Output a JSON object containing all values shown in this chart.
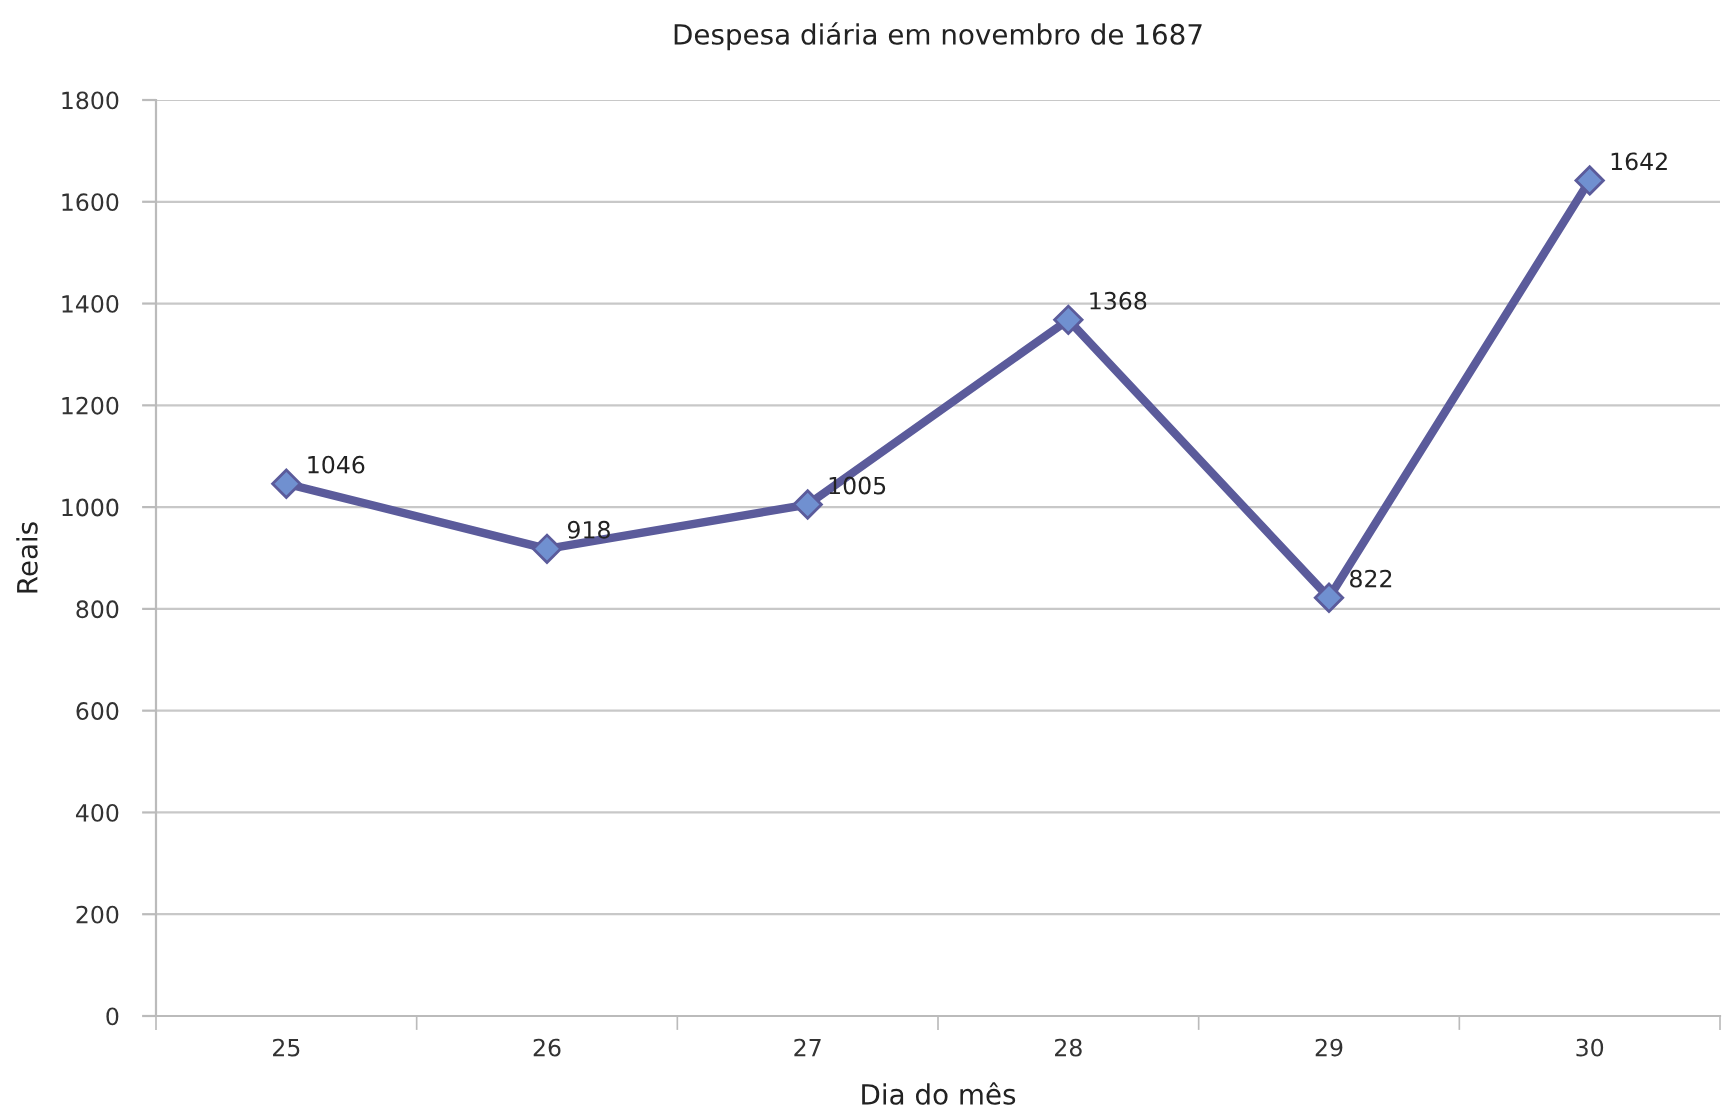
{
  "chart_data": {
    "type": "line",
    "title": "Despesa diária em novembro de 1687",
    "xlabel": "Dia do mês",
    "ylabel": "Reais",
    "categories": [
      "25",
      "26",
      "27",
      "28",
      "29",
      "30"
    ],
    "series": [
      {
        "color": "#5b5b9b",
        "values": [
          1046,
          918,
          1005,
          1368,
          822,
          1642
        ]
      }
    ],
    "ylim": [
      0,
      1800
    ],
    "yticks": [
      0,
      200,
      400,
      600,
      800,
      1000,
      1200,
      1400,
      1600,
      1800
    ],
    "grid": "y",
    "marker": "diamond",
    "line_style": "solid",
    "data_labels": true
  }
}
